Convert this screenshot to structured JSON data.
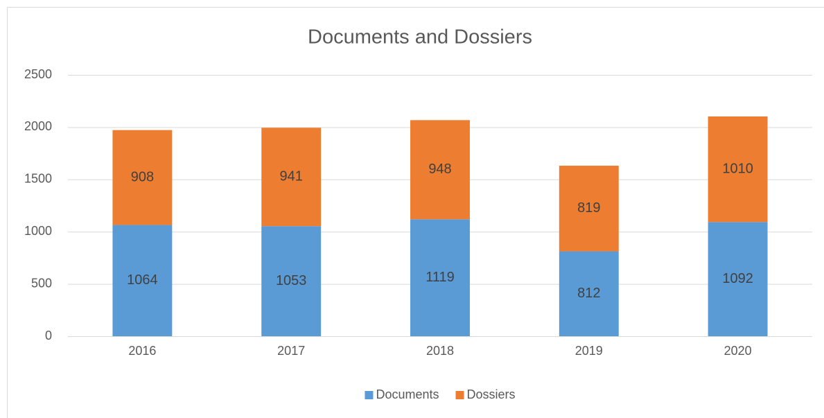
{
  "chart_data": {
    "type": "bar",
    "stacked": true,
    "title": "Documents and Dossiers",
    "categories": [
      "2016",
      "2017",
      "2018",
      "2019",
      "2020"
    ],
    "series": [
      {
        "name": "Documents",
        "color": "#5b9bd5",
        "values": [
          1064,
          1053,
          1119,
          812,
          1092
        ]
      },
      {
        "name": "Dossiers",
        "color": "#ed7d31",
        "values": [
          908,
          941,
          948,
          819,
          1010
        ]
      }
    ],
    "ylim": [
      0,
      2500
    ],
    "yticks": [
      0,
      500,
      1000,
      1500,
      2000,
      2500
    ],
    "grid": true,
    "legend": "bottom"
  }
}
